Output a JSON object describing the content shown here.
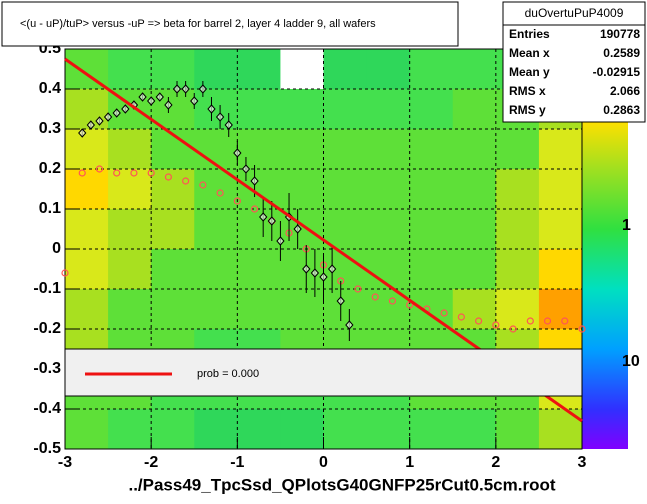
{
  "chart_data": {
    "type": "heatmap",
    "title": "<(u - uP)/tuP> versus  -uP => beta for barrel 2, layer 4 ladder 9, all wafers",
    "x_label": "../Pass49_TpcSsd_QPlotsG40GNFP25rCut0.5cm.root",
    "xlim": [
      -3,
      3
    ],
    "ylim": [
      -0.5,
      0.5
    ],
    "xticks": [
      -3,
      -2,
      -1,
      0,
      1,
      2,
      3
    ],
    "yticks": [
      -0.5,
      -0.4,
      -0.3,
      -0.2,
      -0.1,
      0,
      0.1,
      0.2,
      0.3,
      0.4,
      0.5
    ],
    "grid": true,
    "z": [
      [
        3,
        2,
        2,
        1,
        1,
        0,
        1,
        1,
        2,
        2,
        2,
        3
      ],
      [
        4,
        3,
        3,
        2,
        2,
        2,
        2,
        2,
        2,
        3,
        3,
        4
      ],
      [
        5,
        4,
        3,
        3,
        3,
        3,
        3,
        3,
        3,
        3,
        3,
        5
      ],
      [
        6,
        5,
        4,
        3,
        3,
        3,
        3,
        3,
        3,
        3,
        4,
        5
      ],
      [
        5,
        4,
        4,
        3,
        3,
        3,
        3,
        3,
        3,
        3,
        4,
        5
      ],
      [
        5,
        4,
        3,
        3,
        3,
        3,
        3,
        3,
        3,
        3,
        4,
        6
      ],
      [
        4,
        3,
        3,
        3,
        3,
        3,
        3,
        3,
        3,
        4,
        5,
        7
      ],
      [
        4,
        3,
        3,
        2,
        2,
        3,
        3,
        3,
        3,
        3,
        4,
        6
      ],
      [
        3,
        3,
        2,
        2,
        2,
        2,
        2,
        2,
        3,
        3,
        3,
        5
      ],
      [
        3,
        2,
        2,
        1,
        1,
        1,
        2,
        2,
        2,
        2,
        3,
        4
      ]
    ],
    "zcolors": [
      "#ffffff",
      "#2fd75a",
      "#44e04e",
      "#5ee038",
      "#a8e020",
      "#d9e81a",
      "#ffd800",
      "#ffa000"
    ],
    "zticks": [
      "10",
      "1",
      "10"
    ],
    "profile_red": {
      "color": "#ff5555",
      "x": [
        -3,
        -2.8,
        -2.6,
        -2.4,
        -2.2,
        -2,
        -1.8,
        -1.6,
        -1.4,
        -1.2,
        -1,
        -0.8,
        -0.6,
        -0.4,
        -0.2,
        0,
        0.2,
        0.4,
        0.6,
        0.8,
        1,
        1.2,
        1.4,
        1.6,
        1.8,
        2,
        2.2,
        2.4,
        2.6,
        2.8,
        3
      ],
      "y": [
        -0.06,
        0.19,
        0.2,
        0.19,
        0.19,
        0.19,
        0.18,
        0.17,
        0.16,
        0.14,
        0.12,
        0.1,
        0.07,
        0.04,
        0,
        -0.04,
        -0.08,
        -0.1,
        -0.12,
        -0.13,
        -0.14,
        -0.15,
        -0.16,
        -0.17,
        -0.18,
        -0.19,
        -0.2,
        -0.18,
        -0.18,
        -0.18,
        -0.2
      ]
    },
    "profile_black": {
      "color": "#000000",
      "x": [
        -2.8,
        -2.7,
        -2.6,
        -2.5,
        -2.4,
        -2.3,
        -2.2,
        -2.1,
        -2,
        -1.9,
        -1.8,
        -1.7,
        -1.6,
        -1.5,
        -1.4,
        -1.3,
        -1.2,
        -1.1,
        -1,
        -0.9,
        -0.8,
        -0.7,
        -0.6,
        -0.5,
        -0.4,
        -0.3,
        -0.2,
        -0.1,
        0,
        0.1,
        0.2,
        0.3
      ],
      "y": [
        0.29,
        0.31,
        0.32,
        0.33,
        0.34,
        0.35,
        0.36,
        0.38,
        0.37,
        0.38,
        0.36,
        0.4,
        0.4,
        0.37,
        0.4,
        0.35,
        0.33,
        0.31,
        0.24,
        0.2,
        0.17,
        0.08,
        0.07,
        0.02,
        0.08,
        0.05,
        -0.05,
        -0.06,
        -0.07,
        -0.05,
        -0.13,
        -0.19
      ],
      "err": [
        0.01,
        0.01,
        0.01,
        0.01,
        0.01,
        0.01,
        0.01,
        0.01,
        0.01,
        0.01,
        0.02,
        0.02,
        0.02,
        0.02,
        0.02,
        0.03,
        0.03,
        0.03,
        0.03,
        0.03,
        0.04,
        0.05,
        0.05,
        0.05,
        0.06,
        0.05,
        0.06,
        0.06,
        0.06,
        0.06,
        0.05,
        0.04
      ]
    },
    "fit": {
      "color": "#ee1111",
      "x": [
        -3,
        3
      ],
      "y": [
        0.475,
        -0.43
      ]
    },
    "legend": {
      "label": "prob = 0.000"
    },
    "stats": {
      "name": "duOvertuPuP4009",
      "rows": [
        {
          "label": "Entries",
          "value": 190778
        },
        {
          "label": "Mean x",
          "value": 0.2589
        },
        {
          "label": "Mean y",
          "value": -0.02915
        },
        {
          "label": "RMS x",
          "value": 2.066
        },
        {
          "label": "RMS y",
          "value": 0.2863
        }
      ]
    }
  }
}
